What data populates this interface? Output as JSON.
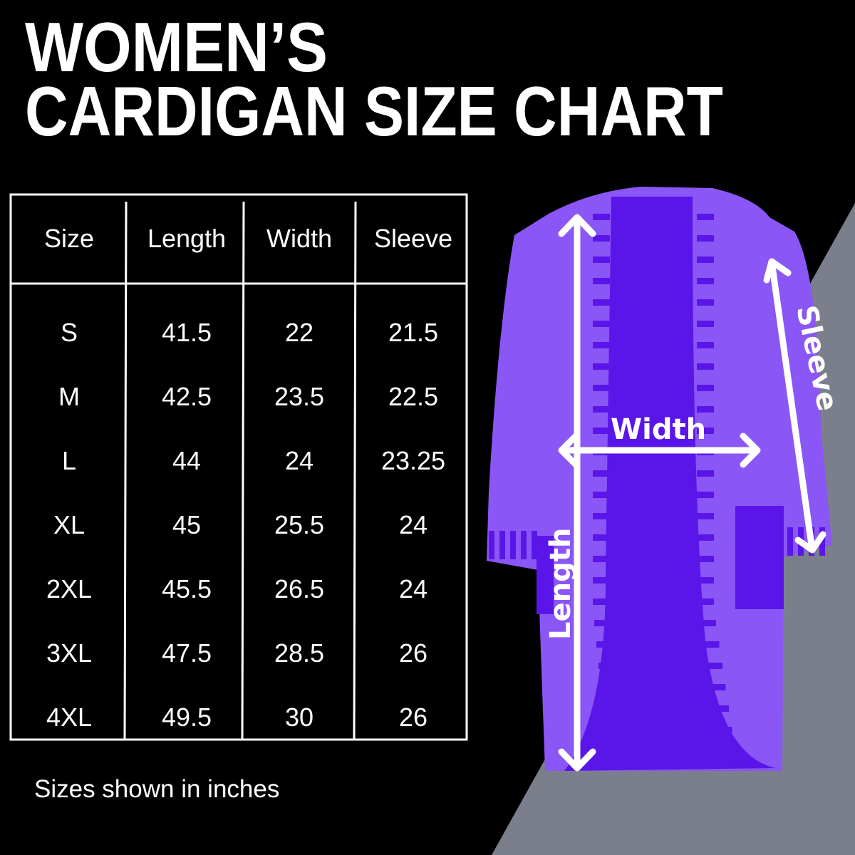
{
  "title": {
    "line1": "WOMEN’S",
    "line2": "CARDIGAN SIZE CHART"
  },
  "colors": {
    "background": "#000000",
    "accent_gray": "#7b7f8c",
    "cardigan_light": "#8b56f6",
    "cardigan_dark": "#5a16e8",
    "text": "#ffffff"
  },
  "chart_data": {
    "type": "table",
    "columns": [
      "Size",
      "Length",
      "Width",
      "Sleeve"
    ],
    "rows": [
      [
        "S",
        "41.5",
        "22",
        "21.5"
      ],
      [
        "M",
        "42.5",
        "23.5",
        "22.5"
      ],
      [
        "L",
        "44",
        "24",
        "23.25"
      ],
      [
        "XL",
        "45",
        "25.5",
        "24"
      ],
      [
        "2XL",
        "45.5",
        "26.5",
        "24"
      ],
      [
        "3XL",
        "47.5",
        "28.5",
        "26"
      ],
      [
        "4XL",
        "49.5",
        "30",
        "26"
      ]
    ]
  },
  "footer": "Sizes shown in inches",
  "diagram": {
    "length_label": "Length",
    "width_label": "Width",
    "sleeve_label": "Sleeve"
  }
}
